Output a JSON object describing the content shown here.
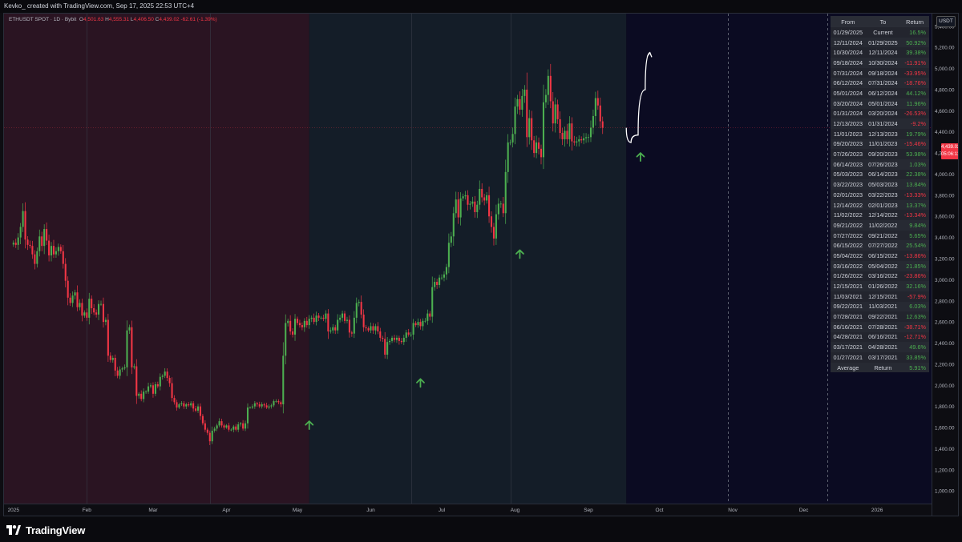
{
  "header": {
    "caption": "Kevko_ created with TradingView.com, Sep 17, 2025 22:53 UTC+4"
  },
  "legend": {
    "symbol": "ETHUSDT SPOT · 1D · Bybit",
    "open_label": "O",
    "open": "4,501.63",
    "high_label": "H",
    "high": "4,555.31",
    "low_label": "L",
    "low": "4,406.50",
    "close_label": "C",
    "close": "4,439.02",
    "change": "-62.61 (-1.39%)"
  },
  "price_axis": {
    "currency": "USDT",
    "last_price": "4,439.02",
    "countdown": "05:06:11"
  },
  "stats_table": {
    "headers": [
      "From",
      "To",
      "Return"
    ],
    "rows": [
      {
        "from": "01/29/2025",
        "to": "Current",
        "ret": "16.5%"
      },
      {
        "from": "12/11/2024",
        "to": "01/29/2025",
        "ret": "50.92%"
      },
      {
        "from": "10/30/2024",
        "to": "12/11/2024",
        "ret": "39.38%"
      },
      {
        "from": "09/18/2024",
        "to": "10/30/2024",
        "ret": "-11.91%"
      },
      {
        "from": "07/31/2024",
        "to": "09/18/2024",
        "ret": "-33.95%"
      },
      {
        "from": "06/12/2024",
        "to": "07/31/2024",
        "ret": "-18.76%"
      },
      {
        "from": "05/01/2024",
        "to": "06/12/2024",
        "ret": "44.12%"
      },
      {
        "from": "03/20/2024",
        "to": "05/01/2024",
        "ret": "11.96%"
      },
      {
        "from": "01/31/2024",
        "to": "03/20/2024",
        "ret": "-26.53%"
      },
      {
        "from": "12/13/2023",
        "to": "01/31/2024",
        "ret": "-9.2%"
      },
      {
        "from": "11/01/2023",
        "to": "12/13/2023",
        "ret": "19.79%"
      },
      {
        "from": "09/20/2023",
        "to": "11/01/2023",
        "ret": "-15.46%"
      },
      {
        "from": "07/26/2023",
        "to": "09/20/2023",
        "ret": "53.98%"
      },
      {
        "from": "06/14/2023",
        "to": "07/26/2023",
        "ret": "1.03%"
      },
      {
        "from": "05/03/2023",
        "to": "06/14/2023",
        "ret": "22.38%"
      },
      {
        "from": "03/22/2023",
        "to": "05/03/2023",
        "ret": "13.84%"
      },
      {
        "from": "02/01/2023",
        "to": "03/22/2023",
        "ret": "-13.33%"
      },
      {
        "from": "12/14/2022",
        "to": "02/01/2023",
        "ret": "13.37%"
      },
      {
        "from": "11/02/2022",
        "to": "12/14/2022",
        "ret": "-13.34%"
      },
      {
        "from": "09/21/2022",
        "to": "11/02/2022",
        "ret": "9.84%"
      },
      {
        "from": "07/27/2022",
        "to": "09/21/2022",
        "ret": "5.65%"
      },
      {
        "from": "06/15/2022",
        "to": "07/27/2022",
        "ret": "25.54%"
      },
      {
        "from": "05/04/2022",
        "to": "06/15/2022",
        "ret": "-13.86%"
      },
      {
        "from": "03/16/2022",
        "to": "05/04/2022",
        "ret": "21.85%"
      },
      {
        "from": "01/26/2022",
        "to": "03/16/2022",
        "ret": "-23.86%"
      },
      {
        "from": "12/15/2021",
        "to": "01/26/2022",
        "ret": "32.16%"
      },
      {
        "from": "11/03/2021",
        "to": "12/15/2021",
        "ret": "-57.9%"
      },
      {
        "from": "09/22/2021",
        "to": "11/03/2021",
        "ret": "6.03%"
      },
      {
        "from": "07/28/2021",
        "to": "09/22/2021",
        "ret": "12.63%"
      },
      {
        "from": "06/16/2021",
        "to": "07/28/2021",
        "ret": "-38.71%"
      },
      {
        "from": "04/28/2021",
        "to": "06/16/2021",
        "ret": "-12.71%"
      },
      {
        "from": "03/17/2021",
        "to": "04/28/2021",
        "ret": "49.6%"
      },
      {
        "from": "01/27/2021",
        "to": "03/17/2021",
        "ret": "33.85%"
      }
    ],
    "average_label": "Average",
    "average_to": "Return",
    "average_value": "5.91%"
  },
  "colors": {
    "up": "#26a69a",
    "up_candle": "#4caf50",
    "down": "#f23645",
    "zone_red": "#2a1422",
    "zone_teal": "#141d28",
    "zone_future": "#0b0b22",
    "arrow": "#4caf50"
  },
  "footer": {
    "brand": "TradingView"
  },
  "chart_data": {
    "type": "candlestick",
    "symbol": "ETHUSDT",
    "timeframe": "1D",
    "exchange": "Bybit",
    "y_ticks": [
      1000,
      1200,
      1400,
      1600,
      1800,
      2000,
      2200,
      2400,
      2600,
      2800,
      3000,
      3200,
      3400,
      3600,
      3800,
      4000,
      4200,
      4400,
      4600,
      4800,
      5000,
      5200,
      5400
    ],
    "y_tick_labels": [
      "1,000.00",
      "1,200.00",
      "1,400.00",
      "1,600.00",
      "1,800.00",
      "2,000.00",
      "2,200.00",
      "2,400.00",
      "2,600.00",
      "2,800.00",
      "3,000.00",
      "3,200.00",
      "3,400.00",
      "3,600.00",
      "3,800.00",
      "4,000.00",
      "4,200.00",
      "4,400.00",
      "4,600.00",
      "4,800.00",
      "5,000.00",
      "5,200.00",
      "5,400.00"
    ],
    "ylim": [
      880,
      5520
    ],
    "x_start": "2024-12-28",
    "x_end": "2026-01-24",
    "x_tick_labels": [
      {
        "label": "2025",
        "date": "2025-01-01"
      },
      {
        "label": "Feb",
        "date": "2025-02-01"
      },
      {
        "label": "Mar",
        "date": "2025-03-01"
      },
      {
        "label": "Apr",
        "date": "2025-04-01"
      },
      {
        "label": "May",
        "date": "2025-05-01"
      },
      {
        "label": "Jun",
        "date": "2025-06-01"
      },
      {
        "label": "Jul",
        "date": "2025-07-01"
      },
      {
        "label": "Aug",
        "date": "2025-08-01"
      },
      {
        "label": "Sep",
        "date": "2025-09-01"
      },
      {
        "label": "Oct",
        "date": "2025-10-01"
      },
      {
        "label": "Nov",
        "date": "2025-11-01"
      },
      {
        "label": "Dec",
        "date": "2025-12-01"
      },
      {
        "label": "2026",
        "date": "2026-01-01"
      }
    ],
    "zones": [
      {
        "from": "2024-12-28",
        "to": "2025-05-06",
        "color": "zone_red"
      },
      {
        "from": "2025-05-06",
        "to": "2025-09-17",
        "color": "zone_teal"
      },
      {
        "from": "2025-09-17",
        "to": "2026-01-24",
        "color": "zone_future"
      }
    ],
    "vertical_lines": [
      "2025-02-01",
      "2025-03-25",
      "2025-06-18",
      "2025-07-30"
    ],
    "future_dashed_lines": [
      "2025-10-30",
      "2025-12-11"
    ],
    "close_series": {
      "start": "2025-01-01",
      "values": [
        3350,
        3330,
        3400,
        3500,
        3650,
        3380,
        3330,
        3320,
        3240,
        3150,
        3270,
        3410,
        3320,
        3480,
        3370,
        3230,
        3320,
        3240,
        3270,
        3310,
        3270,
        3150,
        2990,
        2830,
        2780,
        2850,
        2880,
        2740,
        2780,
        2660,
        2690,
        2640,
        2820,
        2730,
        2690,
        2670,
        2770,
        2770,
        2600,
        2620,
        2280,
        2240,
        2260,
        2140,
        2090,
        2150,
        2160,
        2170,
        2520,
        2550,
        2170,
        2180,
        1900,
        1920,
        1870,
        1940,
        1940,
        1990,
        2000,
        1920,
        2010,
        1990,
        2080,
        2090,
        2130,
        2070,
        2020,
        1880,
        1840,
        1790,
        1820,
        1830,
        1800,
        1820,
        1810,
        1830,
        1780,
        1760,
        1800,
        1710,
        1640,
        1580,
        1550,
        1470,
        1570,
        1590,
        1620,
        1660,
        1620,
        1600,
        1620,
        1580,
        1580,
        1610,
        1580,
        1630,
        1640,
        1590,
        1640,
        1790,
        1790,
        1800,
        1830,
        1820,
        1800,
        1820,
        1810,
        1790,
        1800,
        1810,
        1850,
        1850,
        1840,
        1820,
        2280,
        2590,
        2610,
        2510,
        2480,
        2630,
        2590,
        2570,
        2550,
        2610,
        2570,
        2630,
        2640,
        2600,
        2660,
        2640,
        2640,
        2630,
        2680,
        2510,
        2520,
        2550,
        2520,
        2620,
        2640,
        2680,
        2610,
        2620,
        2500,
        2490,
        2640,
        2780,
        2790,
        2670,
        2550,
        2540,
        2520,
        2560,
        2520,
        2560,
        2510,
        2450,
        2440,
        2290,
        2410,
        2420,
        2450,
        2430,
        2450,
        2420,
        2410,
        2450,
        2500,
        2480,
        2480,
        2590,
        2570,
        2600,
        2560,
        2610,
        2610,
        2680,
        2650,
        2930,
        2980,
        2950,
        3020,
        3020,
        3050,
        3120,
        3350,
        3410,
        3630,
        3760,
        3590,
        3770,
        3790,
        3800,
        3710,
        3720,
        3740,
        3640,
        3710,
        3860,
        3780,
        3750,
        3800,
        3600,
        3500,
        3390,
        3620,
        3720,
        3720,
        3630,
        4020,
        4300,
        4300,
        4380,
        4640,
        4710,
        4610,
        4740,
        4800,
        4350,
        4530,
        4320,
        4200,
        4300,
        4240,
        4160,
        4680,
        4750,
        4930,
        4690,
        4480,
        4660,
        4520,
        4390,
        4330,
        4410,
        4330,
        4480,
        4310,
        4300,
        4310,
        4330,
        4320,
        4340,
        4350,
        4350,
        4440,
        4550,
        4720,
        4650,
        4500,
        4439
      ]
    },
    "annotations": {
      "up_arrows": [
        {
          "date": "2025-05-06",
          "price": 1660
        },
        {
          "date": "2025-06-22",
          "price": 2060
        },
        {
          "date": "2025-08-03",
          "price": 3280
        },
        {
          "date": "2025-09-23",
          "price": 4200
        }
      ],
      "projection_curve": [
        {
          "date": "2025-09-17",
          "price": 4439
        },
        {
          "date": "2025-09-19",
          "price": 4300
        },
        {
          "date": "2025-09-22",
          "price": 4370
        },
        {
          "date": "2025-09-25",
          "price": 4800
        },
        {
          "date": "2025-09-27",
          "price": 5150
        }
      ]
    }
  }
}
